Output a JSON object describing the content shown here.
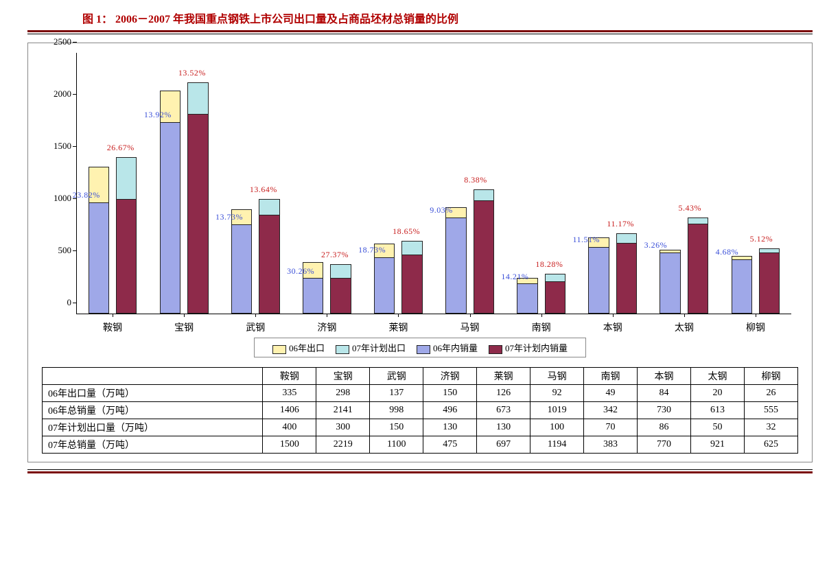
{
  "title_prefix": "图 1：",
  "title_main": "2006－2007 年我国重点钢铁上市公司出口量及占商品坯材总销量的比例",
  "colors": {
    "title": "#b00000",
    "rule_thick": "#7a0000",
    "export06": "#fff2b0",
    "export07": "#b9e6e9",
    "domestic06": "#9fa8e8",
    "domestic07": "#8e2a4a",
    "pct06": "#3a4fd8",
    "pct07": "#c81e1e",
    "border": "#222222",
    "axis": "#000000"
  },
  "chart": {
    "type": "stacked-bar-grouped",
    "ymax": 2500,
    "ytick_step": 500,
    "yticks": [
      0,
      500,
      1000,
      1500,
      2000,
      2500
    ],
    "categories": [
      "鞍钢",
      "宝钢",
      "武钢",
      "济钢",
      "莱钢",
      "马钢",
      "南钢",
      "本钢",
      "太钢",
      "柳钢"
    ],
    "series": [
      {
        "key": "export06",
        "label": "06年出口",
        "color": "#fff2b0"
      },
      {
        "key": "export07",
        "label": "07年计划出口",
        "color": "#b9e6e9"
      },
      {
        "key": "domestic06",
        "label": "06年内销量",
        "color": "#9fa8e8"
      },
      {
        "key": "domestic07",
        "label": "07年计划内销量",
        "color": "#8e2a4a"
      }
    ],
    "data06": {
      "export": [
        335,
        298,
        137,
        150,
        126,
        92,
        49,
        84,
        20,
        26
      ],
      "total": [
        1406,
        2141,
        998,
        496,
        673,
        1019,
        342,
        730,
        613,
        555
      ]
    },
    "data07": {
      "export": [
        400,
        300,
        150,
        130,
        130,
        100,
        70,
        86,
        50,
        32
      ],
      "total": [
        1500,
        2219,
        1100,
        475,
        697,
        1194,
        383,
        770,
        921,
        625
      ]
    },
    "pct06": [
      "23.82%",
      "13.92%",
      "13.73%",
      "30.26%",
      "18.73%",
      "9.03%",
      "14.21%",
      "11.51%",
      "3.26%",
      "4.68%"
    ],
    "pct07": [
      "26.67%",
      "13.52%",
      "13.64%",
      "27.37%",
      "18.65%",
      "8.38%",
      "18.28%",
      "11.17%",
      "5.43%",
      "5.12%"
    ]
  },
  "table": {
    "row_headers": [
      "06年出口量（万吨）",
      "06年总销量（万吨）",
      "07年计划出口量（万吨）",
      "07年总销量（万吨）"
    ],
    "rows": [
      [
        335,
        298,
        137,
        150,
        126,
        92,
        49,
        84,
        20,
        26
      ],
      [
        1406,
        2141,
        998,
        496,
        673,
        1019,
        342,
        730,
        613,
        555
      ],
      [
        400,
        300,
        150,
        130,
        130,
        100,
        70,
        86,
        50,
        32
      ],
      [
        1500,
        2219,
        1100,
        475,
        697,
        1194,
        383,
        770,
        921,
        625
      ]
    ]
  }
}
